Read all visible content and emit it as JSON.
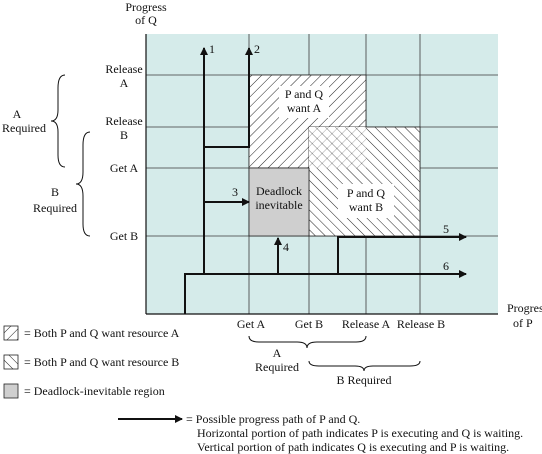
{
  "axes": {
    "y_title": [
      "Progress",
      "of Q"
    ],
    "x_title": [
      "Progress",
      "of P"
    ]
  },
  "y_ticks": {
    "release_a": [
      "Release",
      "A"
    ],
    "release_b": [
      "Release",
      "B"
    ],
    "get_a": "Get A",
    "get_b": "Get B"
  },
  "x_ticks": {
    "get_a": "Get A",
    "get_b": "Get B",
    "release_a": "Release A",
    "release_b": "Release B"
  },
  "brackets": {
    "q_a_required": [
      "A",
      "Required"
    ],
    "q_b_required": [
      "B",
      "Required"
    ],
    "p_a_required": [
      "A",
      "Required"
    ],
    "p_b_required": "B Required"
  },
  "regions": {
    "p_q_want_a": [
      "P and Q",
      "want A"
    ],
    "p_q_want_b": [
      "P and Q",
      "want B"
    ],
    "deadlock": [
      "Deadlock",
      "inevitable"
    ]
  },
  "paths": {
    "labels": [
      "1",
      "2",
      "3",
      "4",
      "5",
      "6"
    ]
  },
  "legend": {
    "want_a": "= Both P and Q want resource A",
    "want_b": "= Both P and Q want resource B",
    "deadlock": "= Deadlock-inevitable region",
    "path_line1": "= Possible progress path of P and Q.",
    "path_line2": "Horizontal portion of path indicates P is executing and Q is waiting.",
    "path_line3": "Vertical portion of path indicates Q is executing and P is waiting."
  },
  "colors": {
    "plot_bg": "#d5ebea",
    "grid": "#3a3a3a",
    "deadlock_fill": "#cfcfcf",
    "hatch_fill": "#ffffff",
    "ink": "#111111"
  }
}
